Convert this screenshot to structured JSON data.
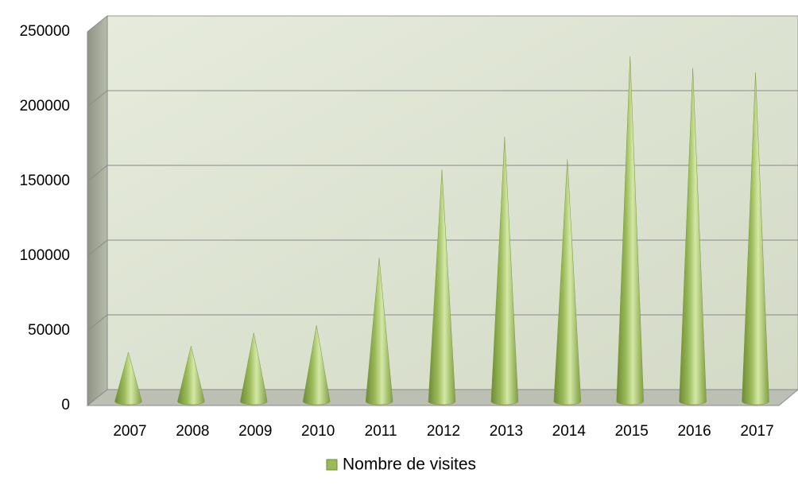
{
  "chart_data": {
    "type": "cone",
    "categories": [
      "2007",
      "2008",
      "2009",
      "2010",
      "2011",
      "2012",
      "2013",
      "2014",
      "2015",
      "2016",
      "2017"
    ],
    "series": [
      {
        "name": "Nombre de visites",
        "color": "#9bbb59",
        "values": [
          33000,
          37000,
          46000,
          51000,
          96000,
          155000,
          177000,
          162000,
          231000,
          223000,
          220000
        ]
      }
    ],
    "ylim": [
      0,
      250000
    ],
    "yticks": [
      0,
      50000,
      100000,
      150000,
      200000,
      250000
    ],
    "grid": true,
    "legend": "bottom"
  }
}
